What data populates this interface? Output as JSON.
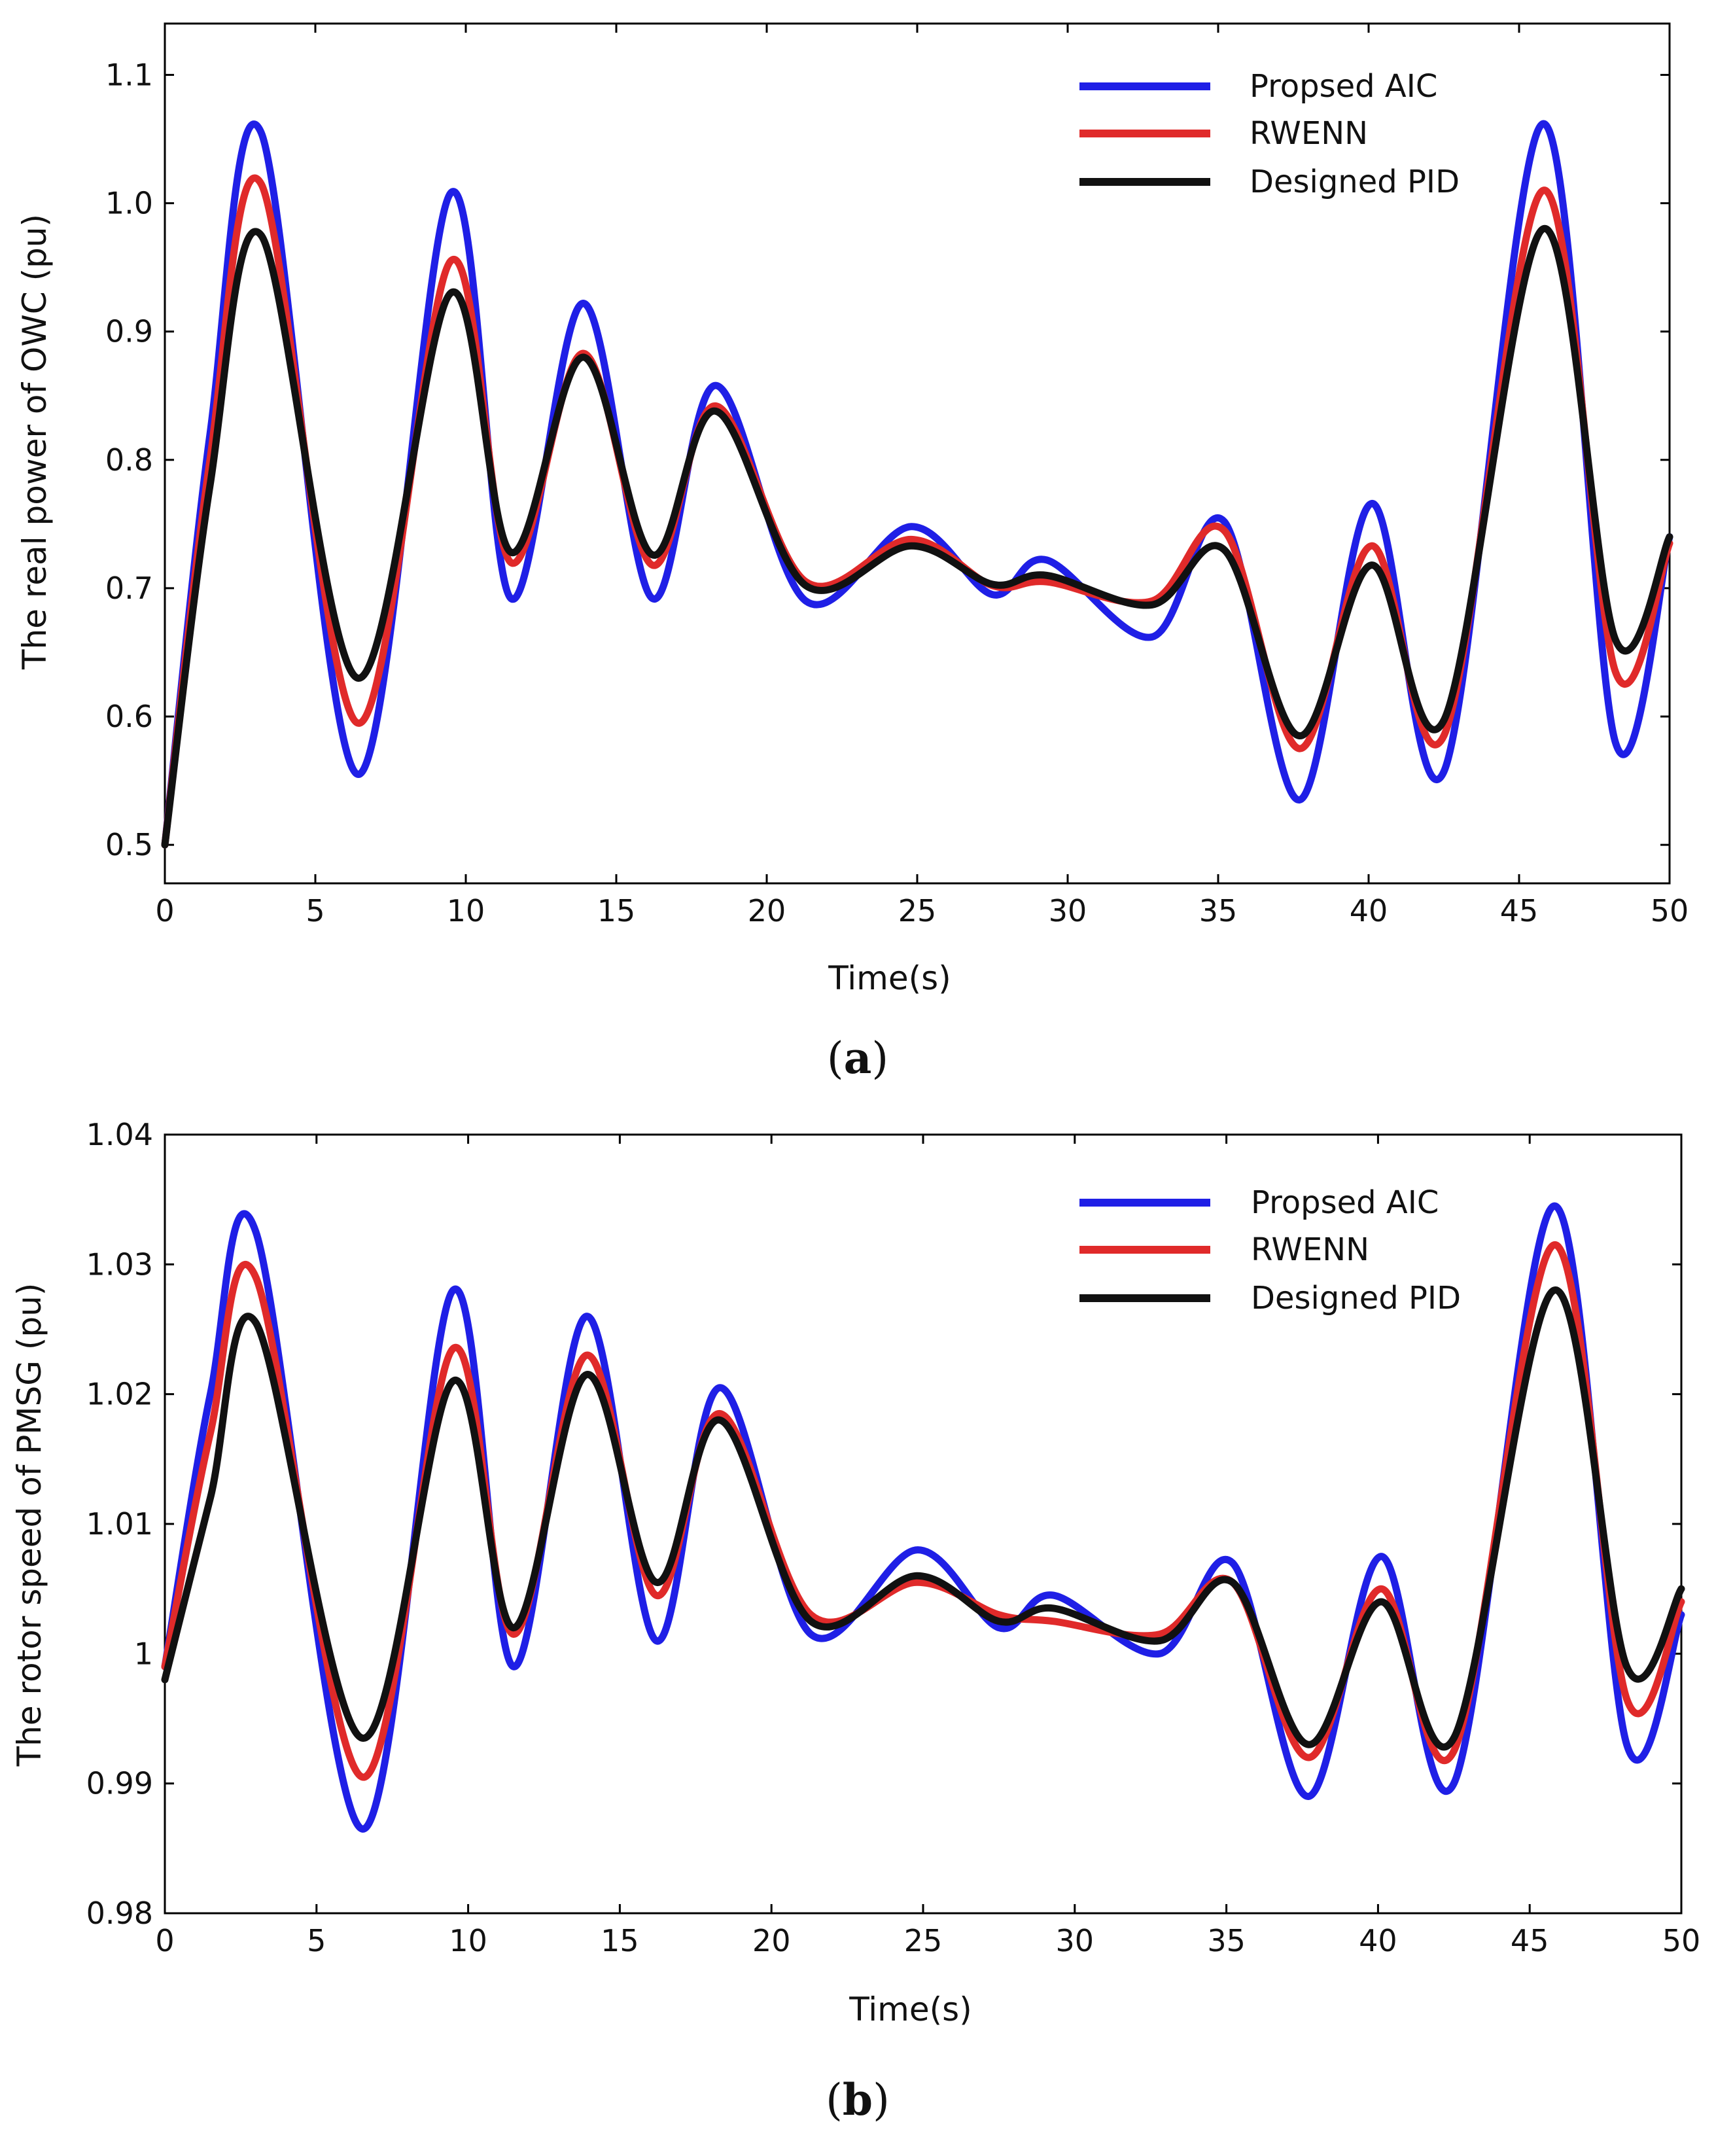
{
  "chart_data": [
    {
      "type": "line",
      "panel": "a",
      "caption_open": "(",
      "caption_letter": "a",
      "caption_close": ")",
      "xlabel": "Time(s)",
      "ylabel": "The real power of OWC (pu)",
      "xlim": [
        0,
        50
      ],
      "ylim": [
        0.47,
        1.14
      ],
      "xticks": [
        0,
        5,
        10,
        15,
        20,
        25,
        30,
        35,
        40,
        45,
        50
      ],
      "yticks": [
        0.5,
        0.6,
        0.7,
        0.8,
        0.9,
        1.0,
        1.1
      ],
      "ytick_labels": [
        "0.5",
        "0.6",
        "0.7",
        "0.8",
        "0.9",
        "1.0",
        "1.1"
      ],
      "legend_position": "top-right",
      "series": [
        {
          "name": "Propsed AIC",
          "color": "#1f1fe6",
          "x": [
            0,
            1.5,
            3.2,
            6.4,
            9.5,
            11.5,
            13.9,
            16.2,
            18.3,
            21.3,
            24.8,
            27.5,
            29.3,
            32.8,
            35.2,
            37.7,
            40.1,
            42.5,
            45.8,
            48.2,
            50
          ],
          "y": [
            0.5,
            0.82,
            1.055,
            0.555,
            1.008,
            0.692,
            0.922,
            0.692,
            0.858,
            0.69,
            0.748,
            0.695,
            0.722,
            0.662,
            0.752,
            0.535,
            0.766,
            0.557,
            1.062,
            0.58,
            0.74
          ]
        },
        {
          "name": "RWENN",
          "color": "#e02a2a",
          "x": [
            0,
            1.5,
            3.2,
            6.4,
            9.5,
            11.5,
            13.9,
            16.2,
            18.3,
            21.3,
            24.8,
            27.5,
            29.3,
            32.8,
            35.2,
            37.7,
            40.1,
            42.5,
            45.8,
            48.2,
            50
          ],
          "y": [
            0.5,
            0.8,
            1.015,
            0.595,
            0.955,
            0.72,
            0.883,
            0.718,
            0.842,
            0.705,
            0.738,
            0.702,
            0.705,
            0.69,
            0.745,
            0.575,
            0.733,
            0.585,
            1.01,
            0.635,
            0.735
          ]
        },
        {
          "name": "Designed PID",
          "color": "#111111",
          "x": [
            0,
            1.5,
            3.2,
            6.4,
            9.5,
            11.5,
            13.9,
            16.2,
            18.3,
            21.3,
            24.8,
            27.5,
            29.3,
            32.8,
            35.2,
            37.7,
            40.1,
            42.5,
            45.8,
            48.2,
            50
          ],
          "y": [
            0.5,
            0.78,
            0.975,
            0.63,
            0.93,
            0.728,
            0.88,
            0.726,
            0.838,
            0.702,
            0.733,
            0.703,
            0.71,
            0.687,
            0.73,
            0.585,
            0.718,
            0.597,
            0.98,
            0.66,
            0.74
          ]
        }
      ]
    },
    {
      "type": "line",
      "panel": "b",
      "caption_open": "(",
      "caption_letter": "b",
      "caption_close": ")",
      "xlabel": "Time(s)",
      "ylabel": "The rotor speed of PMSG (pu)",
      "xlim": [
        0,
        50
      ],
      "ylim": [
        0.98,
        1.04
      ],
      "xticks": [
        0,
        5,
        10,
        15,
        20,
        25,
        30,
        35,
        40,
        45,
        50
      ],
      "yticks": [
        0.98,
        0.99,
        1.0,
        1.01,
        1.02,
        1.03,
        1.04
      ],
      "ytick_labels": [
        "0.98",
        "0.99",
        "1",
        "1.01",
        "1.02",
        "1.03",
        "1.04"
      ],
      "legend_position": "top-right",
      "series": [
        {
          "name": "Propsed AIC",
          "color": "#1f1fe6",
          "x": [
            0,
            1.5,
            3.0,
            6.5,
            9.5,
            11.5,
            13.9,
            16.2,
            18.3,
            21.3,
            24.8,
            27.5,
            29.3,
            32.8,
            35.2,
            37.7,
            40.1,
            42.5,
            45.8,
            48.2,
            50
          ],
          "y": [
            0.999,
            1.02,
            1.0325,
            0.9865,
            1.028,
            0.999,
            1.026,
            1.001,
            1.0205,
            1.0015,
            1.008,
            1.002,
            1.0045,
            1.0,
            1.007,
            0.989,
            1.0075,
            0.99,
            1.0345,
            0.993,
            1.003
          ]
        },
        {
          "name": "RWENN",
          "color": "#e02a2a",
          "x": [
            0,
            1.5,
            3.0,
            6.5,
            9.5,
            11.5,
            13.9,
            16.2,
            18.3,
            21.3,
            24.8,
            27.5,
            29.3,
            32.8,
            35.2,
            37.7,
            40.1,
            42.5,
            45.8,
            48.2,
            50
          ],
          "y": [
            0.999,
            1.017,
            1.029,
            0.9905,
            1.0235,
            1.0015,
            1.023,
            1.0045,
            1.0185,
            1.003,
            1.0055,
            1.003,
            1.0025,
            1.0015,
            1.0055,
            0.992,
            1.005,
            0.9925,
            1.0315,
            0.9965,
            1.004
          ]
        },
        {
          "name": "Designed PID",
          "color": "#111111",
          "x": [
            0,
            1.5,
            3.0,
            6.5,
            9.5,
            11.5,
            13.9,
            16.2,
            18.3,
            21.3,
            24.8,
            27.5,
            29.3,
            32.8,
            35.2,
            37.7,
            40.1,
            42.5,
            45.8,
            48.2,
            50
          ],
          "y": [
            0.998,
            1.012,
            1.0255,
            0.9935,
            1.021,
            1.002,
            1.0215,
            1.0055,
            1.018,
            1.0025,
            1.006,
            1.0025,
            1.0035,
            1.001,
            1.0055,
            0.993,
            1.004,
            0.9935,
            1.028,
            0.999,
            1.005
          ]
        }
      ]
    }
  ]
}
